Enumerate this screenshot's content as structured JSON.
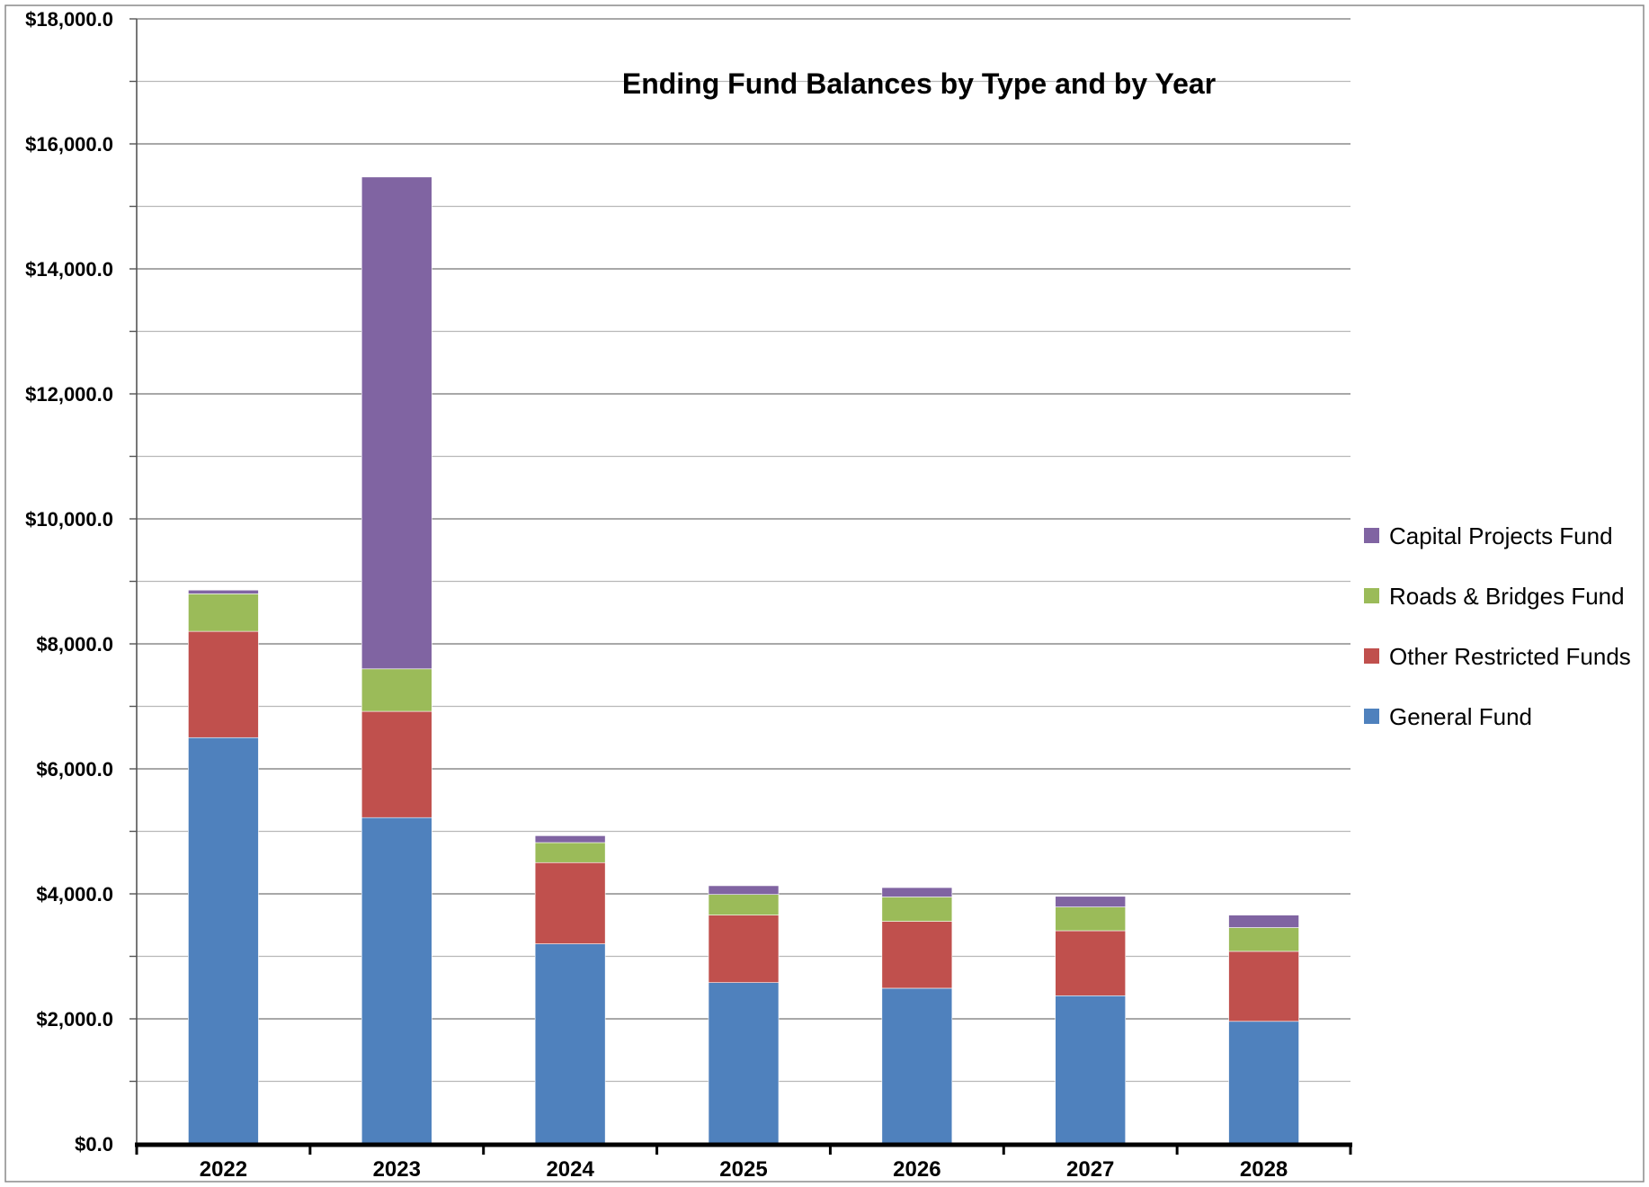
{
  "chart_data": {
    "type": "bar",
    "stacked": true,
    "title": "Ending Fund Balances by Type and by Year",
    "xlabel": "",
    "ylabel": "",
    "categories": [
      "2022",
      "2023",
      "2024",
      "2025",
      "2026",
      "2027",
      "2028"
    ],
    "ylim": [
      0,
      18000
    ],
    "y_major_ticks": [
      0,
      2000,
      4000,
      6000,
      8000,
      10000,
      12000,
      14000,
      16000,
      18000
    ],
    "y_tick_labels": [
      "$0.0",
      "$2,000.0",
      "$4,000.0",
      "$6,000.0",
      "$8,000.0",
      "$10,000.0",
      "$12,000.0",
      "$14,000.0",
      "$16,000.0",
      "$18,000.0"
    ],
    "y_minor_step": 1000,
    "grid": true,
    "legend_position": "right",
    "series": [
      {
        "name": "General Fund",
        "color": "#4F81BD",
        "values": [
          6500,
          5220,
          3200,
          2580,
          2490,
          2370,
          1960
        ]
      },
      {
        "name": "Other Restricted Funds",
        "color": "#C0504D",
        "values": [
          1700,
          1700,
          1300,
          1080,
          1070,
          1040,
          1120
        ]
      },
      {
        "name": "Roads & Bridges Fund",
        "color": "#9BBB59",
        "values": [
          600,
          680,
          320,
          330,
          390,
          380,
          380
        ]
      },
      {
        "name": "Capital Projects Fund",
        "color": "#8064A2",
        "values": [
          60,
          7870,
          110,
          140,
          150,
          170,
          200
        ]
      }
    ]
  }
}
